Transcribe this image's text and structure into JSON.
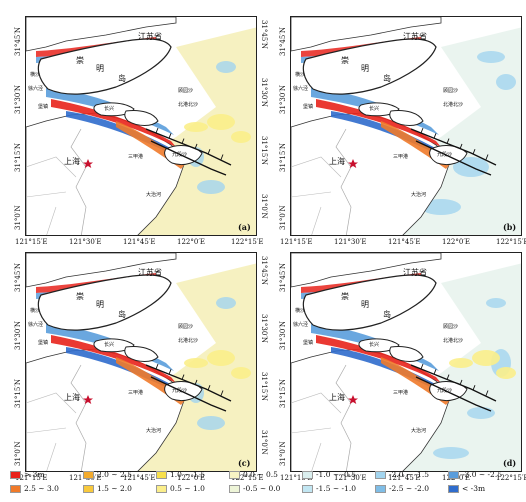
{
  "lon_ticks": [
    "121°15′E",
    "121°30′E",
    "121°45′E",
    "122°0′E",
    "122°15′E"
  ],
  "lat_ticks": [
    "31°45′N",
    "31°30′N",
    "31°15′N",
    "31°0′N"
  ],
  "place_names": {
    "jiangsu": "江苏省",
    "chongming_1": "崇",
    "chongming_2": "明",
    "chongming_3": "岛",
    "shanghai": "上海",
    "hengsha": "横沙",
    "jiuduansha": "九段沙",
    "dayangshan": "大治河",
    "sanjiagang": "三甲港",
    "guyuansha": "顾园沙",
    "beihu": "北港北沙",
    "xuliujing": "徐六泾",
    "baozhen": "堡镇",
    "chang": "长兴"
  },
  "panels": [
    {
      "letter": "(a)"
    },
    {
      "letter": "(b)"
    },
    {
      "letter": "(c)"
    },
    {
      "letter": "(d)"
    }
  ],
  "legend": [
    {
      "label": "> 3m",
      "color": "#e8231c"
    },
    {
      "label": "2.5 ~ 3.0",
      "color": "#f07a2a"
    },
    {
      "label": "2.0 ~ 2.5",
      "color": "#f3ab2e"
    },
    {
      "label": "1.5 ~ 2.0",
      "color": "#f8c93d"
    },
    {
      "label": "1.0 ~ 1.5",
      "color": "#f8e04c"
    },
    {
      "label": "0.5 ~ 1.0",
      "color": "#fbee8a"
    },
    {
      "label": "0.0 ~ 0.5",
      "color": "#f7f3c4"
    },
    {
      "label": "-0.5 ~ 0.0",
      "color": "#eef5d8"
    },
    {
      "label": "-1.0 ~ -0.5",
      "color": "#dbefef"
    },
    {
      "label": "-1.5 ~ -1.0",
      "color": "#c2e6f2"
    },
    {
      "label": "-2.0 ~ -1.5",
      "color": "#a3d5ef"
    },
    {
      "label": "-2.5 ~ -2.0",
      "color": "#7fbde6"
    },
    {
      "label": "-3.0 ~ -2.5",
      "color": "#5a9ddc"
    },
    {
      "label": "< -3m",
      "color": "#2f6ccc"
    }
  ]
}
